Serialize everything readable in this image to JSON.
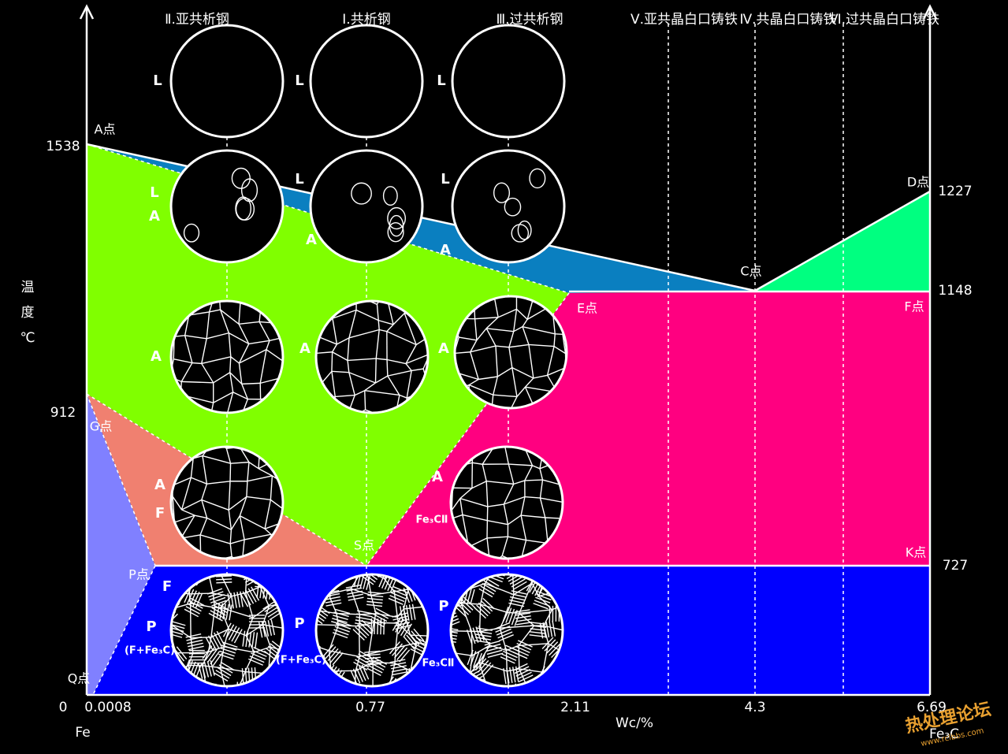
{
  "headers": [
    "Ⅱ.亚共析钢",
    "Ⅰ.共析钢",
    "Ⅲ.过共析钢",
    "Ⅴ.亚共晶白口铸铁",
    "Ⅳ.共晶白口铸铁",
    "Ⅵ.过共晶白口铸铁"
  ],
  "axis": {
    "y_label": [
      "温",
      "度",
      "℃"
    ],
    "x_label": "Wc/%",
    "origin": "Fe",
    "end": "Fe₃C"
  },
  "temperatures": [
    "1538",
    "1227",
    "1148",
    "912",
    "727"
  ],
  "compositions": [
    "0",
    "0.0008",
    "0.77",
    "2.11",
    "4.3",
    "6.69"
  ],
  "points": [
    "A点",
    "D点",
    "C点",
    "E点",
    "F点",
    "G点",
    "S点",
    "P点",
    "K点",
    "Q点"
  ],
  "phase_labels": [
    "L",
    "L",
    "L",
    "L",
    "A",
    "L",
    "A",
    "L",
    "A",
    "A",
    "A",
    "A",
    "A",
    "F",
    "A",
    "Fe₃CⅡ",
    "F",
    "P",
    "(F+Fe₃C)",
    "P",
    "(F+Fe₃C)",
    "P",
    "Fe₃CⅡ"
  ],
  "watermark": {
    "title": "热处理论坛",
    "url": "www.rclbbs.com"
  }
}
